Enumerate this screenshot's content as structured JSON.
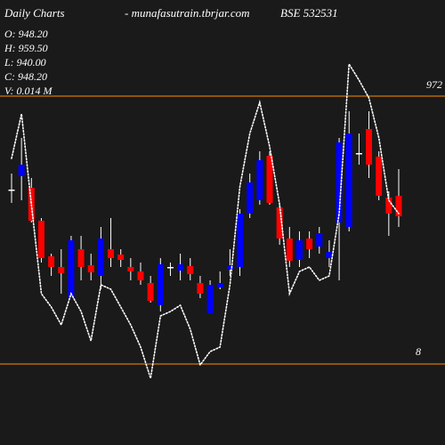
{
  "chart_data": {
    "type": "candlestick",
    "title": "Daily Charts",
    "subtitle": "- munafasutrain.tbrjar.com",
    "symbol": "BSE 532531",
    "info": [
      "O: 948.20",
      "H: 959.50",
      "L: 940.00",
      "C: 948.20",
      "V: 0.014  M"
    ],
    "levels": [
      "972",
      "8"
    ],
    "level_color": "#ff8c00",
    "up_color": "#0000ff",
    "down_color": "#ff0000",
    "flat_color": "#ffffff",
    "ylim": [
      0,
      500
    ],
    "open": [
      287,
      302,
      289,
      252,
      212,
      200,
      165,
      220,
      202,
      190,
      220,
      214,
      200,
      195,
      182,
      157,
      200,
      196,
      201,
      182,
      148,
      177,
      197,
      200,
      260,
      275,
      325,
      267,
      232,
      208,
      232,
      223,
      210,
      250,
      245,
      328,
      355,
      324,
      278,
      280
    ],
    "high": [
      305,
      345,
      300,
      255,
      215,
      220,
      235,
      235,
      215,
      245,
      255,
      220,
      210,
      205,
      190,
      210,
      205,
      215,
      210,
      190,
      185,
      195,
      220,
      265,
      305,
      330,
      330,
      270,
      245,
      240,
      240,
      245,
      230,
      345,
      375,
      350,
      375,
      330,
      285,
      310
    ],
    "low": [
      272,
      275,
      250,
      205,
      190,
      170,
      165,
      185,
      185,
      175,
      200,
      200,
      185,
      180,
      160,
      150,
      190,
      185,
      185,
      165,
      148,
      175,
      190,
      190,
      255,
      270,
      270,
      225,
      200,
      200,
      210,
      215,
      200,
      185,
      240,
      315,
      300,
      275,
      235,
      245
    ],
    "close": [
      287,
      315,
      252,
      210,
      200,
      193,
      230,
      200,
      194,
      232,
      210,
      208,
      195,
      185,
      162,
      203,
      200,
      203,
      192,
      170,
      180,
      182,
      202,
      260,
      295,
      320,
      272,
      232,
      207,
      230,
      220,
      238,
      217,
      340,
      350,
      328,
      315,
      280,
      260,
      257
    ],
    "line": {
      "color": "#ffffff",
      "values": [
        322,
        372,
        270,
        170,
        155,
        135,
        170,
        150,
        117,
        180,
        175,
        155,
        135,
        110,
        75,
        145,
        150,
        157,
        130,
        90,
        105,
        110,
        180,
        290,
        350,
        385,
        335,
        270,
        170,
        195,
        200,
        185,
        190,
        260,
        428,
        410,
        390,
        345,
        275,
        260
      ]
    }
  }
}
